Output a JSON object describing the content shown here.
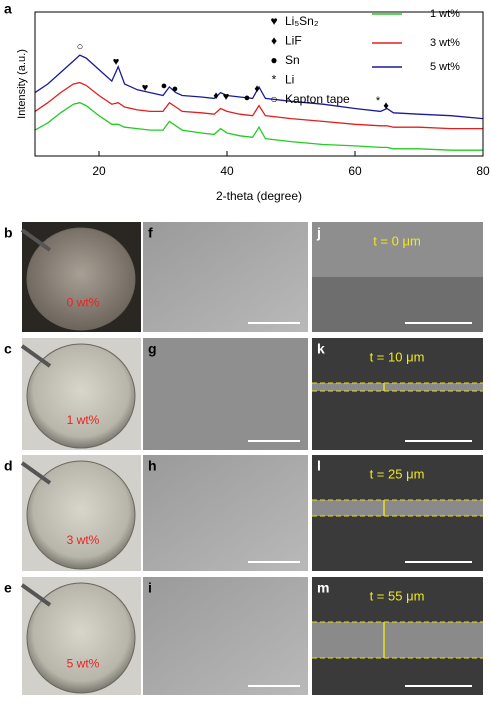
{
  "figure_label": "a",
  "chart_data": {
    "type": "line",
    "xlabel": "2-theta (degree)",
    "ylabel": "Intensity (a.u.)",
    "x": [
      10,
      12,
      14,
      16,
      17,
      18,
      20,
      22,
      23,
      24,
      26,
      28,
      30,
      31,
      32,
      33,
      36,
      38,
      39,
      40,
      42,
      44,
      45,
      46,
      50,
      55,
      60,
      64,
      65,
      66,
      70,
      75,
      80
    ],
    "series": [
      {
        "name": "1 wt%",
        "color": "#22cc22",
        "values": [
          18,
          23,
          30,
          36,
          37,
          35,
          28,
          22,
          22,
          20,
          19,
          18,
          18,
          24,
          21,
          18,
          16,
          15,
          19,
          16,
          14,
          13,
          20,
          12,
          10,
          8,
          7,
          6,
          6,
          5,
          5,
          4,
          4
        ]
      },
      {
        "name": "3 wt%",
        "color": "#e02020",
        "values": [
          31,
          37,
          44,
          50,
          51,
          49,
          42,
          36,
          37,
          34,
          32,
          31,
          31,
          37,
          34,
          31,
          30,
          29,
          33,
          31,
          29,
          28,
          35,
          28,
          26,
          24,
          22,
          21,
          21,
          20,
          20,
          19,
          19
        ]
      },
      {
        "name": "5 wt%",
        "color": "#1a1a9a",
        "values": [
          44,
          50,
          58,
          66,
          70,
          68,
          60,
          52,
          62,
          50,
          46,
          44,
          42,
          48,
          44,
          42,
          41,
          40,
          44,
          42,
          41,
          40,
          48,
          40,
          38,
          36,
          33,
          31,
          33,
          30,
          29,
          28,
          26
        ]
      }
    ],
    "xlim": [
      10,
      80
    ],
    "xticks": [
      20,
      40,
      60,
      80
    ],
    "ylim": [
      0,
      100
    ],
    "phases": [
      {
        "symbol": "♥",
        "name": "Li₅Sn₂"
      },
      {
        "symbol": "♦",
        "name": "LiF"
      },
      {
        "symbol": "●",
        "name": "Sn"
      },
      {
        "symbol": "*",
        "name": "Li"
      },
      {
        "symbol": "○",
        "name": "Kapton tape"
      }
    ],
    "annotations": [
      "○",
      "♥",
      "♥",
      "●",
      "●",
      "♦",
      "♥",
      "●",
      "♦",
      "*",
      "♦"
    ]
  },
  "photos": [
    {
      "label": "b",
      "text": "0 wt%"
    },
    {
      "label": "c",
      "text": "1 wt%"
    },
    {
      "label": "d",
      "text": "3 wt%"
    },
    {
      "label": "e",
      "text": "5 wt%"
    }
  ],
  "sem_surface": [
    {
      "label": "f"
    },
    {
      "label": "g"
    },
    {
      "label": "h"
    },
    {
      "label": "i"
    }
  ],
  "sem_cross": [
    {
      "label": "j",
      "text": "t = 0 μm"
    },
    {
      "label": "k",
      "text": "t = 10 μm"
    },
    {
      "label": "l",
      "text": "t = 25 μm"
    },
    {
      "label": "m",
      "text": "t = 55 μm"
    }
  ]
}
